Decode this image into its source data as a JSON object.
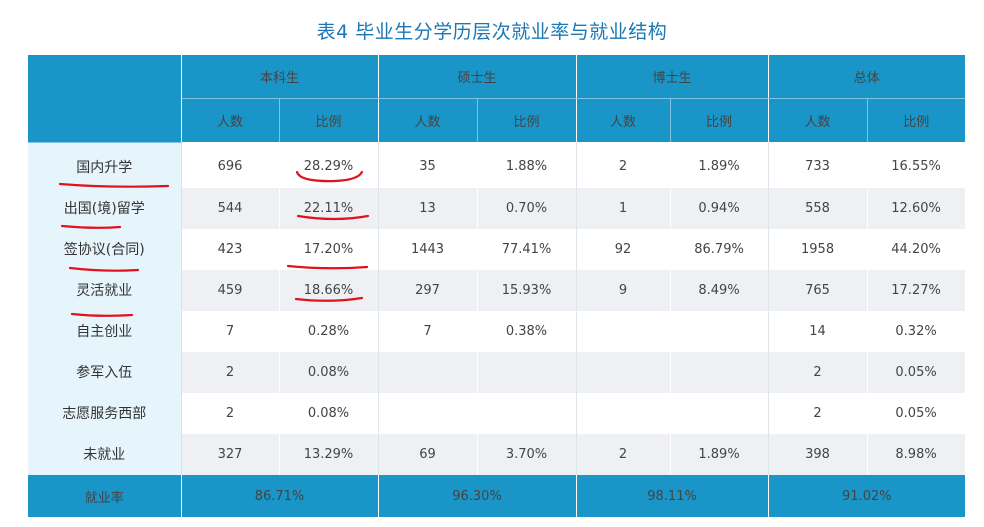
{
  "title": "表4  毕业生分学历层次就业率与就业结构",
  "groups": [
    "本科生",
    "硕士生",
    "博士生",
    "总体"
  ],
  "subheaders": [
    "人数",
    "比例"
  ],
  "rows": [
    {
      "label": "国内升学",
      "cells": [
        "696",
        "28.29%",
        "35",
        "1.88%",
        "2",
        "1.89%",
        "733",
        "16.55%"
      ]
    },
    {
      "label": "出国(境)留学",
      "cells": [
        "544",
        "22.11%",
        "13",
        "0.70%",
        "1",
        "0.94%",
        "558",
        "12.60%"
      ]
    },
    {
      "label": "签协议(合同)",
      "cells": [
        "423",
        "17.20%",
        "1443",
        "77.41%",
        "92",
        "86.79%",
        "1958",
        "44.20%"
      ]
    },
    {
      "label": "灵活就业",
      "cells": [
        "459",
        "18.66%",
        "297",
        "15.93%",
        "9",
        "8.49%",
        "765",
        "17.27%"
      ]
    },
    {
      "label": "自主创业",
      "cells": [
        "7",
        "0.28%",
        "7",
        "0.38%",
        "",
        "",
        "14",
        "0.32%"
      ]
    },
    {
      "label": "参军入伍",
      "cells": [
        "2",
        "0.08%",
        "",
        "",
        "",
        "",
        "2",
        "0.05%"
      ]
    },
    {
      "label": "志愿服务西部",
      "cells": [
        "2",
        "0.08%",
        "",
        "",
        "",
        "",
        "2",
        "0.05%"
      ]
    },
    {
      "label": "未就业",
      "cells": [
        "327",
        "13.29%",
        "69",
        "3.70%",
        "2",
        "1.89%",
        "398",
        "8.98%"
      ]
    }
  ],
  "footer": {
    "label": "就业率",
    "values": [
      "86.71%",
      "96.30%",
      "98.11%",
      "91.02%"
    ]
  },
  "colors": {
    "header": "#1a95c8",
    "title": "#1b78b4",
    "annotation": "#e0131d"
  }
}
